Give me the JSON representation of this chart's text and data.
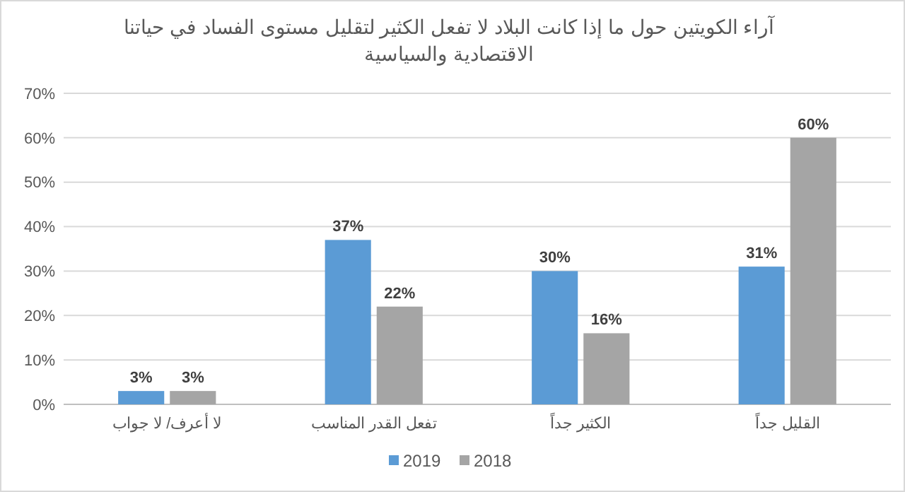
{
  "chart_data": {
    "type": "bar",
    "title": "آراء الكويتين حول ما إذا كانت البلاد لا تفعل الكثير لتقليل مستوى الفساد في حياتنا الاقتصادية والسياسية",
    "categories": [
      "لا أعرف/ لا جواب",
      "تفعل القدر المناسب",
      "الكثير جداً",
      "القليل جداً"
    ],
    "series": [
      {
        "name": "2019",
        "color": "#5b9bd5",
        "values": [
          3,
          37,
          30,
          31
        ],
        "value_labels": [
          "3%",
          "37%",
          "30%",
          "31%"
        ]
      },
      {
        "name": "2018",
        "color": "#a5a5a5",
        "values": [
          3,
          22,
          16,
          60
        ],
        "value_labels": [
          "3%",
          "22%",
          "16%",
          "60%"
        ]
      }
    ],
    "ylim": [
      0,
      70
    ],
    "yticks": [
      {
        "value": 0,
        "label": "0%"
      },
      {
        "value": 10,
        "label": "10%"
      },
      {
        "value": 20,
        "label": "20%"
      },
      {
        "value": 30,
        "label": "30%"
      },
      {
        "value": 40,
        "label": "40%"
      },
      {
        "value": 50,
        "label": "50%"
      },
      {
        "value": 60,
        "label": "60%"
      },
      {
        "value": 70,
        "label": "70%"
      }
    ],
    "grid": "y",
    "legend": "bottom"
  }
}
